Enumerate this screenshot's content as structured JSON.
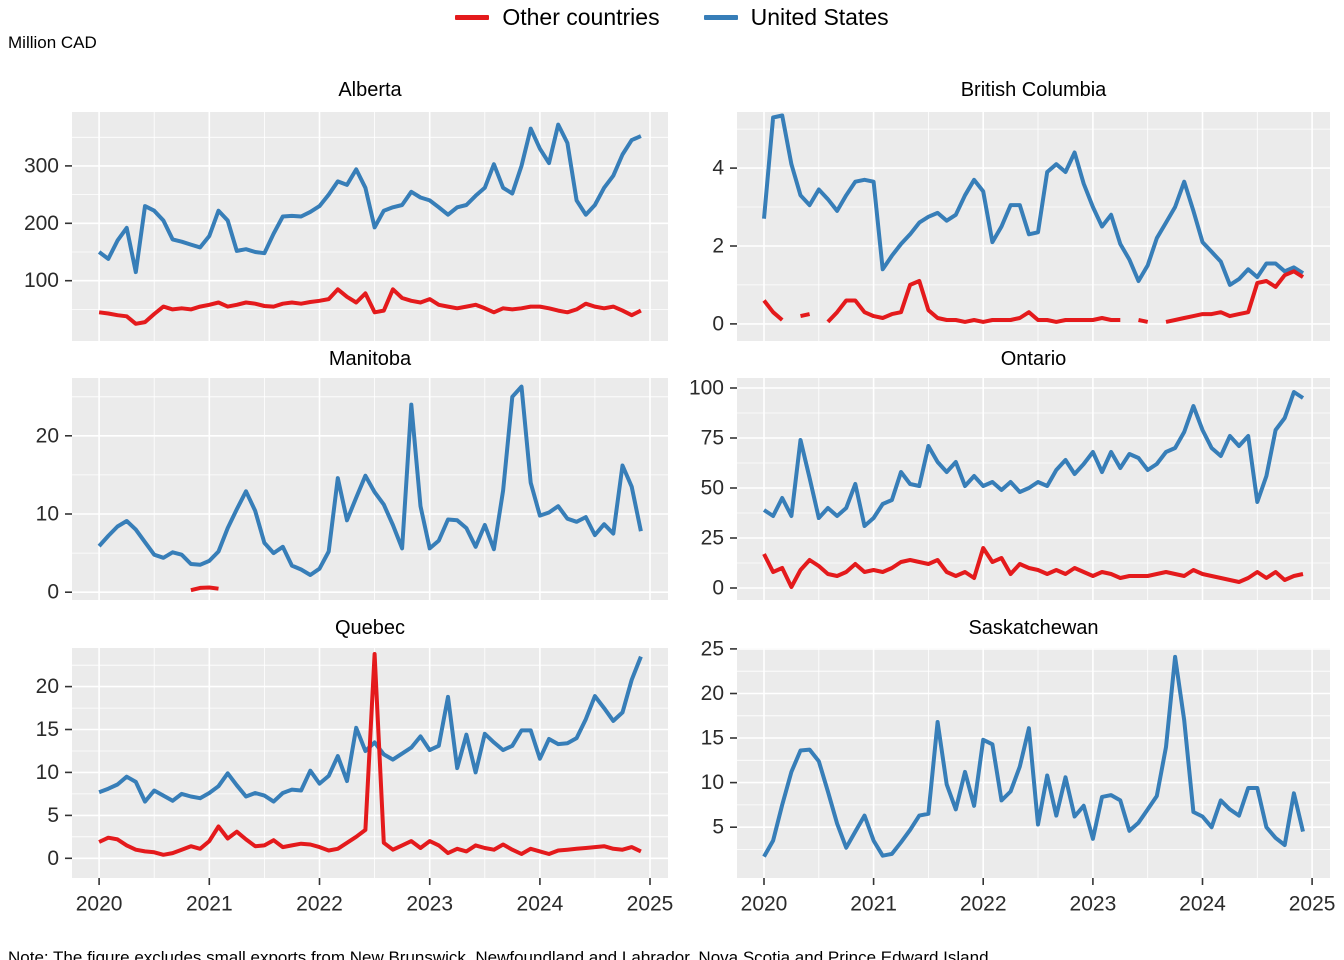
{
  "header": {
    "unit_label": "Million CAD"
  },
  "legend": {
    "items": [
      {
        "label": "Other countries",
        "color": "#e41a1c"
      },
      {
        "label": "United States",
        "color": "#377eb8"
      }
    ]
  },
  "note": {
    "text": "Note: The figure excludes small exports from New Brunswick, Newfoundland and Labrador, Nova Scotia and Prince Edward Island."
  },
  "chart_data": {
    "type": "line",
    "unit": "Million CAD",
    "x_frequency": "monthly",
    "x_range": [
      "2020-01",
      "2024-12"
    ],
    "x_ticks": [
      "2020",
      "2021",
      "2022",
      "2023",
      "2024",
      "2025"
    ],
    "series_names": [
      "Other countries",
      "United States"
    ],
    "colors": {
      "other_countries": "#e41a1c",
      "united_states": "#377eb8"
    },
    "grid": "on",
    "legend_position": "top-center",
    "panels": [
      {
        "title": "Alberta",
        "yticks": [
          100,
          200,
          300
        ],
        "ylim": [
          -5,
          394
        ],
        "united_states": [
          150,
          138,
          170,
          192,
          115,
          230,
          222,
          205,
          172,
          168,
          163,
          158,
          178,
          222,
          205,
          152,
          155,
          150,
          148,
          182,
          212,
          213,
          212,
          220,
          230,
          250,
          273,
          267,
          294,
          262,
          193,
          222,
          228,
          232,
          255,
          245,
          240,
          228,
          215,
          228,
          232,
          248,
          262,
          303,
          262,
          252,
          300,
          365,
          330,
          305,
          372,
          340,
          240,
          215,
          232,
          262,
          283,
          320,
          345,
          352
        ],
        "other_countries": [
          45,
          43,
          40,
          38,
          25,
          28,
          42,
          55,
          50,
          52,
          50,
          55,
          58,
          62,
          55,
          58,
          62,
          60,
          56,
          55,
          60,
          62,
          60,
          63,
          65,
          68,
          85,
          72,
          62,
          78,
          45,
          48,
          85,
          70,
          65,
          62,
          68,
          58,
          55,
          52,
          55,
          58,
          52,
          45,
          52,
          50,
          52,
          55,
          55,
          52,
          48,
          45,
          50,
          60,
          55,
          52,
          55,
          48,
          40,
          48
        ]
      },
      {
        "title": "British Columbia",
        "yticks": [
          0,
          2,
          4
        ],
        "ylim": [
          -0.44,
          5.44
        ],
        "united_states": [
          2.7,
          5.3,
          5.35,
          4.1,
          3.3,
          3.05,
          3.45,
          3.2,
          2.9,
          3.3,
          3.65,
          3.7,
          3.65,
          1.4,
          1.75,
          2.05,
          2.3,
          2.6,
          2.75,
          2.85,
          2.65,
          2.8,
          3.3,
          3.7,
          3.4,
          2.1,
          2.5,
          3.05,
          3.05,
          2.3,
          2.35,
          3.9,
          4.1,
          3.9,
          4.4,
          3.6,
          3.0,
          2.5,
          2.8,
          2.05,
          1.65,
          1.1,
          1.5,
          2.2,
          2.6,
          3.0,
          3.65,
          2.9,
          2.1,
          1.85,
          1.6,
          1.0,
          1.15,
          1.4,
          1.2,
          1.55,
          1.55,
          1.35,
          1.45,
          1.3
        ],
        "other_countries": [
          0.6,
          0.3,
          0.1,
          null,
          0.2,
          0.25,
          null,
          0.05,
          0.3,
          0.6,
          0.6,
          0.3,
          0.2,
          0.15,
          0.25,
          0.3,
          1.0,
          1.1,
          0.35,
          0.15,
          0.1,
          0.1,
          0.05,
          0.1,
          0.05,
          0.1,
          0.1,
          0.1,
          0.15,
          0.3,
          0.1,
          0.1,
          0.05,
          0.1,
          0.1,
          0.1,
          0.1,
          0.15,
          0.1,
          0.1,
          null,
          0.1,
          0.05,
          null,
          0.05,
          0.1,
          0.15,
          0.2,
          0.25,
          0.25,
          0.3,
          0.2,
          0.25,
          0.3,
          1.05,
          1.1,
          0.95,
          1.25,
          1.35,
          1.2
        ]
      },
      {
        "title": "Manitoba",
        "yticks": [
          0,
          10,
          20
        ],
        "ylim": [
          -1.0,
          27.4
        ],
        "united_states": [
          5.9,
          7.2,
          8.4,
          9.1,
          8.0,
          6.4,
          4.8,
          4.4,
          5.1,
          4.8,
          3.6,
          3.5,
          4.0,
          5.2,
          8.2,
          10.6,
          12.9,
          10.4,
          6.3,
          5.0,
          5.8,
          3.4,
          2.9,
          2.2,
          3.0,
          5.2,
          14.6,
          9.2,
          12.1,
          14.9,
          12.8,
          11.2,
          8.6,
          5.6,
          24.0,
          11.0,
          5.6,
          6.6,
          9.3,
          9.2,
          8.2,
          5.8,
          8.6,
          5.5,
          13.0,
          25.0,
          26.3,
          14.0,
          9.8,
          10.2,
          11.0,
          9.4,
          9.0,
          9.6,
          7.3,
          8.7,
          7.5,
          16.2,
          13.5,
          7.8
        ],
        "other_countries": [
          null,
          null,
          null,
          null,
          null,
          null,
          null,
          null,
          null,
          null,
          0.25,
          0.55,
          0.6,
          0.45,
          null,
          null,
          null,
          null,
          null,
          null,
          null,
          null,
          null,
          null,
          null,
          null,
          null,
          null,
          null,
          null,
          null,
          null,
          null,
          null,
          null,
          null,
          null,
          null,
          null,
          null,
          null,
          null,
          null,
          null,
          null,
          null,
          null,
          null,
          null,
          null,
          null,
          null,
          null,
          null,
          null,
          null,
          null,
          null,
          null,
          null
        ]
      },
      {
        "title": "Ontario",
        "yticks": [
          0,
          25,
          50,
          75,
          100
        ],
        "ylim": [
          -6,
          105
        ],
        "united_states": [
          39,
          36,
          45,
          36,
          74,
          55,
          35,
          40,
          36,
          40,
          52,
          31,
          35,
          42,
          44,
          58,
          52,
          51,
          71,
          63,
          58,
          63,
          51,
          56,
          51,
          53,
          49,
          53,
          48,
          50,
          53,
          51,
          59,
          64,
          57,
          62,
          68,
          58,
          68,
          60,
          67,
          65,
          59,
          62,
          68,
          70,
          78,
          91,
          79,
          70,
          66,
          76,
          71,
          76,
          43,
          56,
          79,
          85,
          98,
          95
        ],
        "other_countries": [
          17,
          8,
          10,
          0.5,
          9,
          14,
          11,
          7,
          6,
          8,
          12,
          8,
          9,
          8,
          10,
          13,
          14,
          13,
          12,
          14,
          8,
          6,
          8,
          5,
          20,
          13,
          15,
          7,
          12,
          10,
          9,
          7,
          9,
          7,
          10,
          8,
          6,
          8,
          7,
          5,
          6,
          6,
          6,
          7,
          8,
          7,
          6,
          9,
          7,
          6,
          5,
          4,
          3,
          5,
          8,
          5,
          8,
          4,
          6,
          7
        ]
      },
      {
        "title": "Quebec",
        "yticks": [
          0,
          5,
          10,
          15,
          20
        ],
        "ylim": [
          -2.3,
          24.5
        ],
        "united_states": [
          7.7,
          8.1,
          8.6,
          9.5,
          8.9,
          6.6,
          7.9,
          7.3,
          6.7,
          7.5,
          7.2,
          7.0,
          7.6,
          8.4,
          9.9,
          8.5,
          7.2,
          7.6,
          7.3,
          6.6,
          7.6,
          8.0,
          7.9,
          10.2,
          8.7,
          9.6,
          11.9,
          9.0,
          15.2,
          12.5,
          13.5,
          12.1,
          11.5,
          12.2,
          12.9,
          14.2,
          12.6,
          13.1,
          18.8,
          10.5,
          14.4,
          10.0,
          14.5,
          13.5,
          12.6,
          13.1,
          14.9,
          14.9,
          11.6,
          13.9,
          13.3,
          13.4,
          14.0,
          16.2,
          18.9,
          17.5,
          16.0,
          17.0,
          20.8,
          23.5
        ],
        "other_countries": [
          1.9,
          2.4,
          2.2,
          1.5,
          1.0,
          0.8,
          0.7,
          0.4,
          0.6,
          1.0,
          1.4,
          1.1,
          2.0,
          3.7,
          2.3,
          3.1,
          2.2,
          1.4,
          1.5,
          2.1,
          1.3,
          1.5,
          1.7,
          1.6,
          1.3,
          0.9,
          1.1,
          1.8,
          2.5,
          3.3,
          23.8,
          1.8,
          1.0,
          1.5,
          2.0,
          1.2,
          2.0,
          1.5,
          0.6,
          1.1,
          0.8,
          1.5,
          1.2,
          1.0,
          1.6,
          1.0,
          0.5,
          1.1,
          0.8,
          0.5,
          0.9,
          1.0,
          1.1,
          1.2,
          1.3,
          1.4,
          1.1,
          1.0,
          1.3,
          0.8
        ]
      },
      {
        "title": "Saskatchewan",
        "yticks": [
          5,
          10,
          15,
          20,
          25
        ],
        "ylim": [
          -0.7,
          25.1
        ],
        "united_states": [
          1.7,
          3.5,
          7.5,
          11.2,
          13.6,
          13.7,
          12.4,
          9.0,
          5.4,
          2.7,
          4.5,
          6.3,
          3.5,
          1.8,
          2.0,
          3.3,
          4.7,
          6.3,
          6.5,
          16.8,
          9.8,
          7.0,
          11.2,
          7.4,
          14.8,
          14.3,
          8.0,
          9.0,
          11.8,
          16.1,
          5.3,
          10.8,
          6.3,
          10.6,
          6.2,
          7.4,
          3.7,
          8.4,
          8.6,
          8.0,
          4.6,
          5.5,
          7.0,
          8.5,
          14.0,
          24.1,
          17.0,
          6.7,
          6.2,
          5.0,
          8.0,
          7.0,
          6.3,
          9.4,
          9.4,
          5.0,
          3.8,
          3.0,
          8.8,
          4.5
        ],
        "other_countries": null
      }
    ]
  }
}
